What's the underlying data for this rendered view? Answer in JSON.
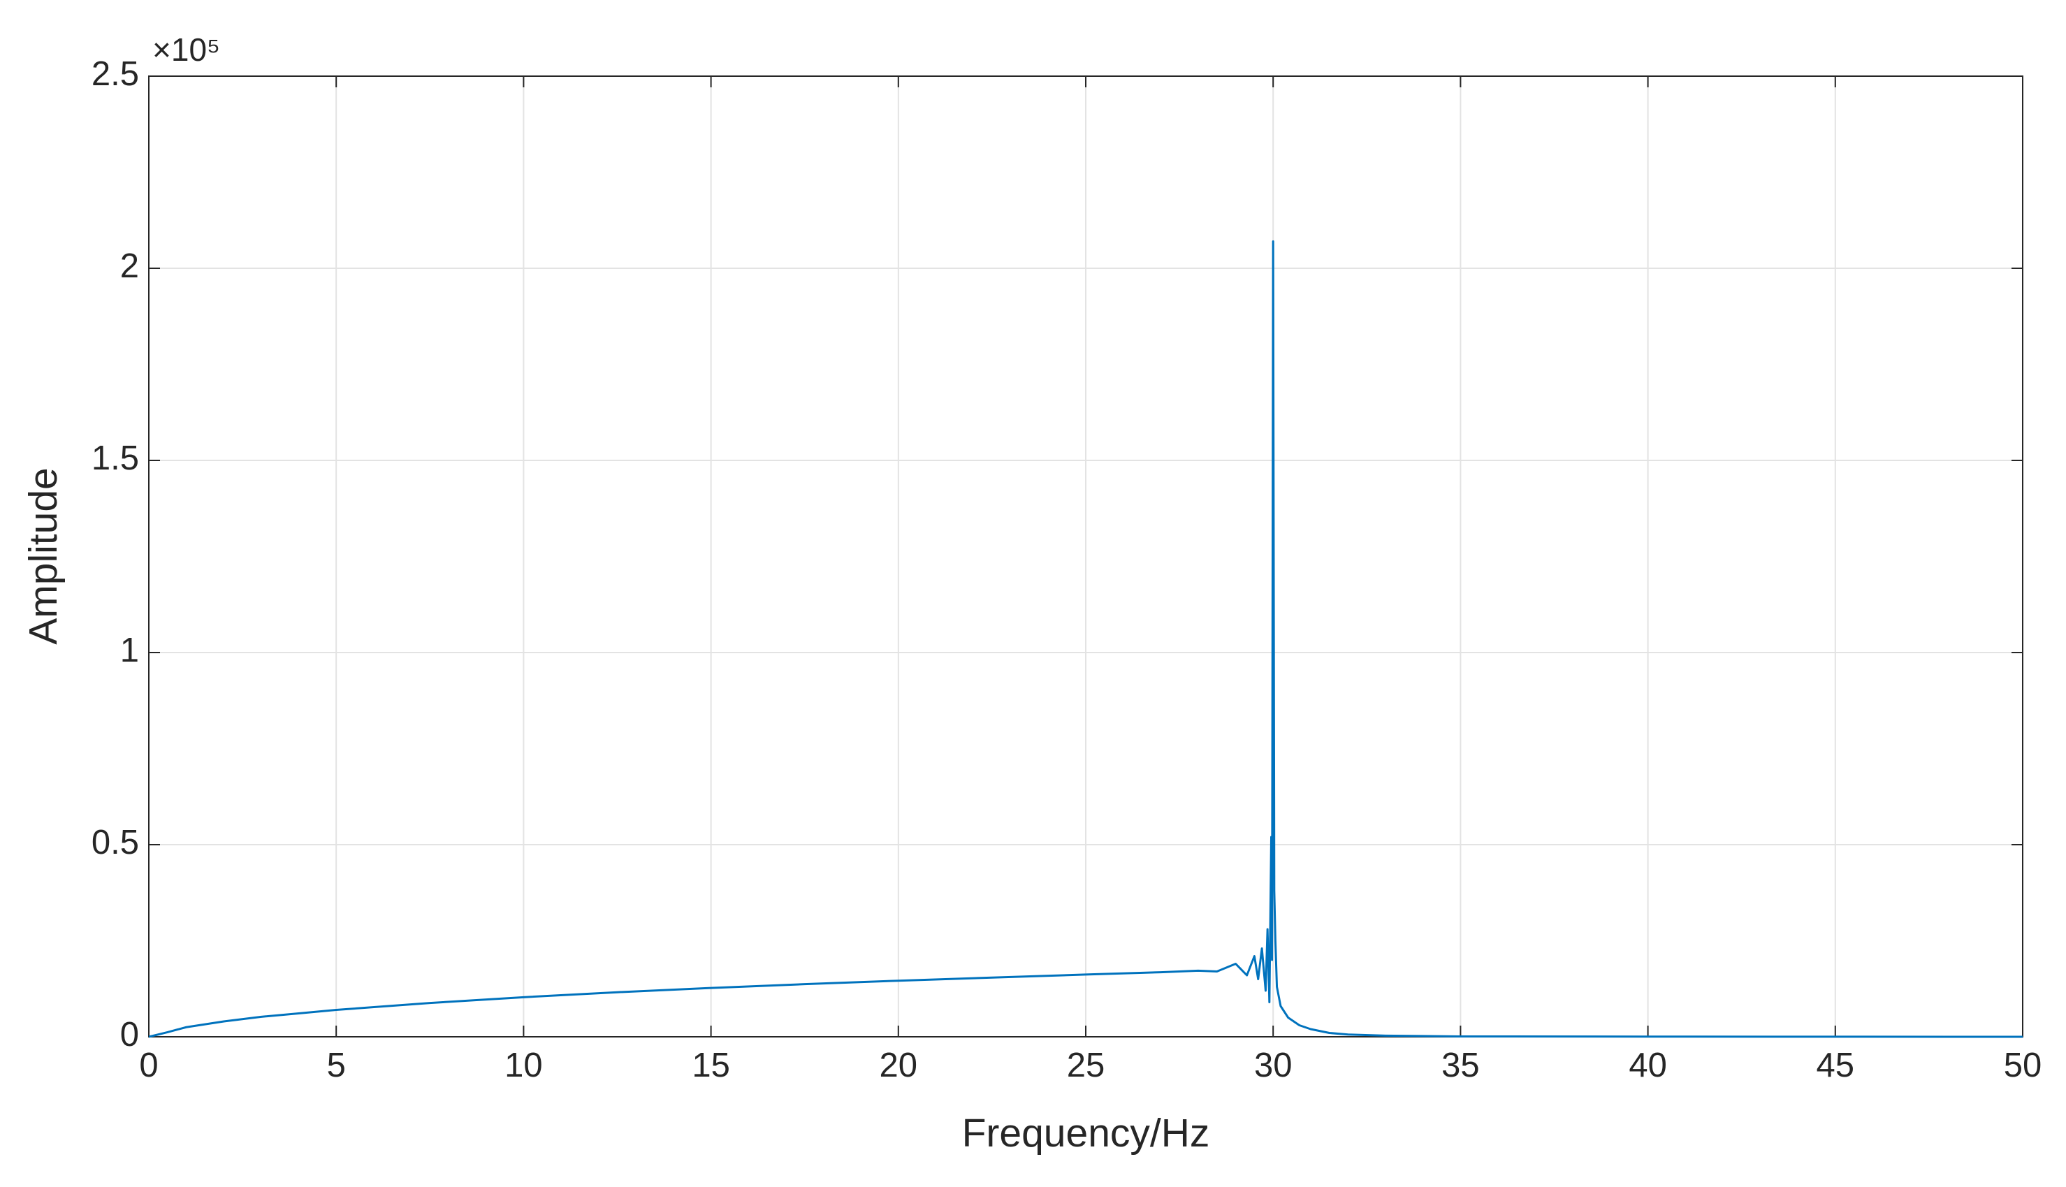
{
  "chart_data": {
    "type": "line",
    "xlabel": "Frequency/Hz",
    "ylabel": "Amplitude",
    "y_scale_label": "×10⁵",
    "x": [
      0,
      0.5,
      1,
      2,
      3,
      4,
      5,
      7.5,
      10,
      12.5,
      15,
      17.5,
      20,
      22.5,
      25,
      27,
      28,
      28.5,
      29,
      29.3,
      29.5,
      29.6,
      29.7,
      29.8,
      29.85,
      29.9,
      29.95,
      29.97,
      30,
      30.03,
      30.06,
      30.1,
      30.2,
      30.4,
      30.7,
      31,
      31.5,
      32,
      33,
      35,
      40,
      45,
      50
    ],
    "series": [
      {
        "color": "#0072bd",
        "values": [
          0,
          0.012,
          0.025,
          0.04,
          0.052,
          0.061,
          0.07,
          0.088,
          0.103,
          0.116,
          0.127,
          0.137,
          0.146,
          0.154,
          0.162,
          0.168,
          0.172,
          0.17,
          0.19,
          0.16,
          0.21,
          0.15,
          0.23,
          0.12,
          0.28,
          0.09,
          0.52,
          0.2,
          2.07,
          0.38,
          0.25,
          0.13,
          0.08,
          0.05,
          0.03,
          0.02,
          0.01,
          0.006,
          0.003,
          0.001,
          0.0005,
          0.0002,
          0
        ]
      }
    ],
    "xlim": [
      0,
      50
    ],
    "xticks": [
      0,
      5,
      10,
      15,
      20,
      25,
      30,
      35,
      40,
      45,
      50
    ],
    "ylim": [
      0,
      2.5
    ],
    "yticks": [
      0,
      0.5,
      1,
      1.5,
      2,
      2.5
    ],
    "grid": true
  }
}
